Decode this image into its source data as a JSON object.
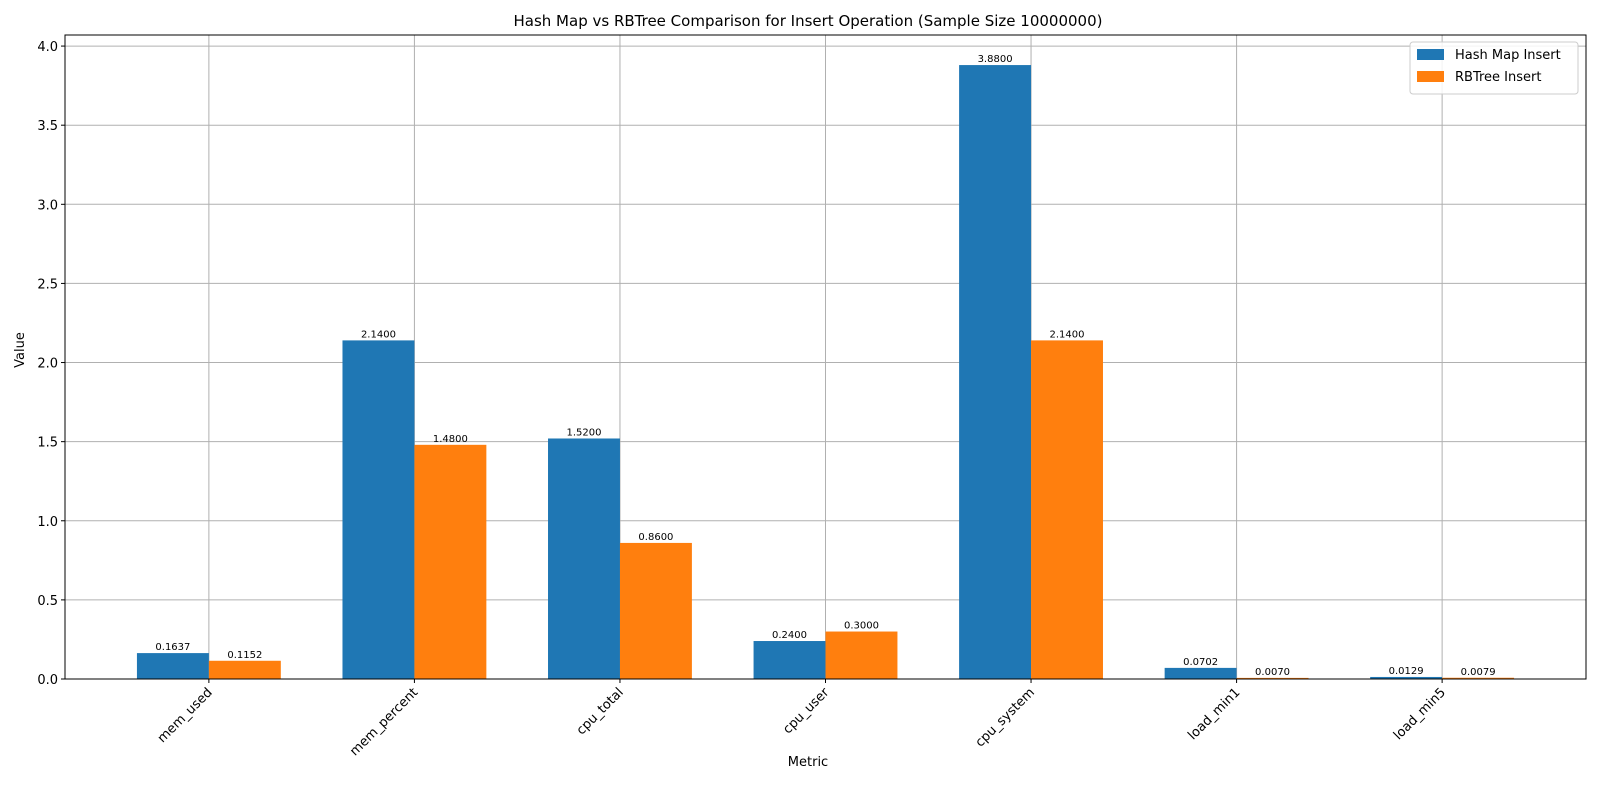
{
  "chart_data": {
    "type": "bar",
    "title": "Hash Map vs RBTree Comparison for Insert Operation (Sample Size 10000000)",
    "xlabel": "Metric",
    "ylabel": "Value",
    "categories": [
      "mem_used",
      "mem_percent",
      "cpu_total",
      "cpu_user",
      "cpu_system",
      "load_min1",
      "load_min5"
    ],
    "series": [
      {
        "name": "Hash Map Insert",
        "color": "#1f77b4",
        "values": [
          0.1637,
          2.14,
          1.52,
          0.24,
          3.88,
          0.0702,
          0.0129
        ],
        "labels": [
          "0.1637",
          "2.1400",
          "1.5200",
          "0.2400",
          "3.8800",
          "0.0702",
          "0.0129"
        ]
      },
      {
        "name": "RBTree Insert",
        "color": "#ff7f0e",
        "values": [
          0.1152,
          1.48,
          0.86,
          0.3,
          2.14,
          0.007,
          0.0079
        ],
        "labels": [
          "0.1152",
          "1.4800",
          "0.8600",
          "0.3000",
          "2.1400",
          "0.0070",
          "0.0079"
        ]
      }
    ],
    "ylim": [
      0,
      4.07
    ],
    "yticks": [
      "0.0",
      "0.5",
      "1.0",
      "1.5",
      "2.0",
      "2.5",
      "3.0",
      "3.5",
      "4.0"
    ],
    "grid": true,
    "legend_position": "top-right"
  }
}
